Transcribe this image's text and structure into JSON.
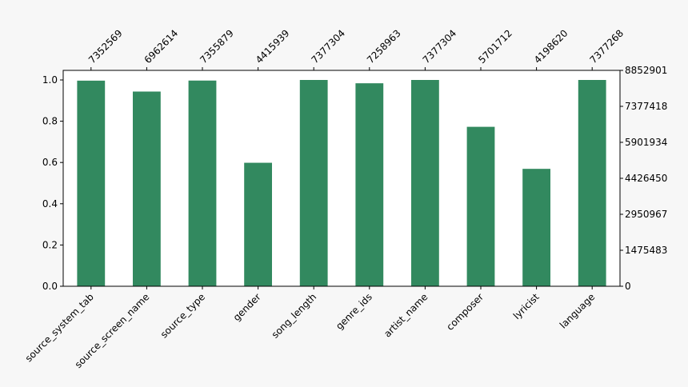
{
  "chart_data": {
    "type": "bar",
    "categories": [
      "source_system_tab",
      "source_screen_name",
      "source_type",
      "gender",
      "song_length",
      "genre_ids",
      "artist_name",
      "composer",
      "lyricist",
      "language"
    ],
    "values": [
      7352569,
      6962614,
      7355879,
      4415939,
      7377304,
      7258963,
      7377304,
      5701712,
      4198620,
      7377268
    ],
    "color": "#32895f",
    "ylim": [
      0,
      7720434
    ],
    "yticks": [
      {
        "value": 0,
        "label": "0.0"
      },
      {
        "value": 1475461,
        "label": "0.2"
      },
      {
        "value": 2950922,
        "label": "0.4"
      },
      {
        "value": 4426382,
        "label": "0.6"
      },
      {
        "value": 5901843,
        "label": "0.8"
      },
      {
        "value": 7377304,
        "label": "1.0"
      }
    ],
    "y2lim": [
      0,
      8852901
    ],
    "y2ticks": [
      0,
      1475483,
      2950967,
      4426450,
      5901934,
      7377418,
      8852901
    ]
  }
}
